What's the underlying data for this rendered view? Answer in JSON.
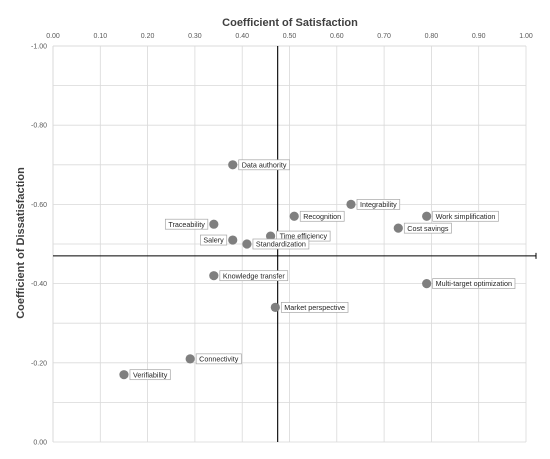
{
  "chart_data": {
    "type": "scatter",
    "title": "",
    "xlabel": "Coefficient of Satisfaction",
    "ylabel": "Coefficient  of Dissatisfaction",
    "xlim": [
      0,
      1.0
    ],
    "ylim": [
      -1.0,
      0
    ],
    "x_ticks": [
      "0.00",
      "0.10",
      "0.20",
      "0.30",
      "0.40",
      "0.50",
      "0.60",
      "0.70",
      "0.80",
      "0.90",
      "1.00"
    ],
    "y_ticks": [
      "-1.00",
      "-0.80",
      "-0.60",
      "-0.40",
      "-0.20",
      "0.00"
    ],
    "grid": true,
    "x_axis_position": "top",
    "y_axis_reversed": true,
    "quadrant_lines": {
      "x": 0.475,
      "y": -0.47
    },
    "points": [
      {
        "label": "Data authority",
        "x": 0.38,
        "y": -0.7,
        "label_side": "right"
      },
      {
        "label": "Integrability",
        "x": 0.63,
        "y": -0.6,
        "label_side": "right"
      },
      {
        "label": "Recognition",
        "x": 0.51,
        "y": -0.57,
        "label_side": "right"
      },
      {
        "label": "Work simplification",
        "x": 0.79,
        "y": -0.57,
        "label_side": "right"
      },
      {
        "label": "Traceability",
        "x": 0.34,
        "y": -0.55,
        "label_side": "left"
      },
      {
        "label": "Cost savings",
        "x": 0.73,
        "y": -0.54,
        "label_side": "right"
      },
      {
        "label": "Time efficiency",
        "x": 0.46,
        "y": -0.52,
        "label_side": "right"
      },
      {
        "label": "Salery",
        "x": 0.38,
        "y": -0.51,
        "label_side": "left"
      },
      {
        "label": "Standardization",
        "x": 0.41,
        "y": -0.5,
        "label_side": "right"
      },
      {
        "label": "Knowledge transfer",
        "x": 0.34,
        "y": -0.42,
        "label_side": "right"
      },
      {
        "label": "Multi-target optimization",
        "x": 0.79,
        "y": -0.4,
        "label_side": "right"
      },
      {
        "label": "Market perspective",
        "x": 0.47,
        "y": -0.34,
        "label_side": "right"
      },
      {
        "label": "Connectivity",
        "x": 0.29,
        "y": -0.21,
        "label_side": "right"
      },
      {
        "label": "Verifiability",
        "x": 0.15,
        "y": -0.17,
        "label_side": "right"
      }
    ],
    "colors": {
      "point": "#7f7f7f",
      "axis": "#000000",
      "grid": "#d9d9d9",
      "label_border": "#a6a6a6"
    }
  }
}
